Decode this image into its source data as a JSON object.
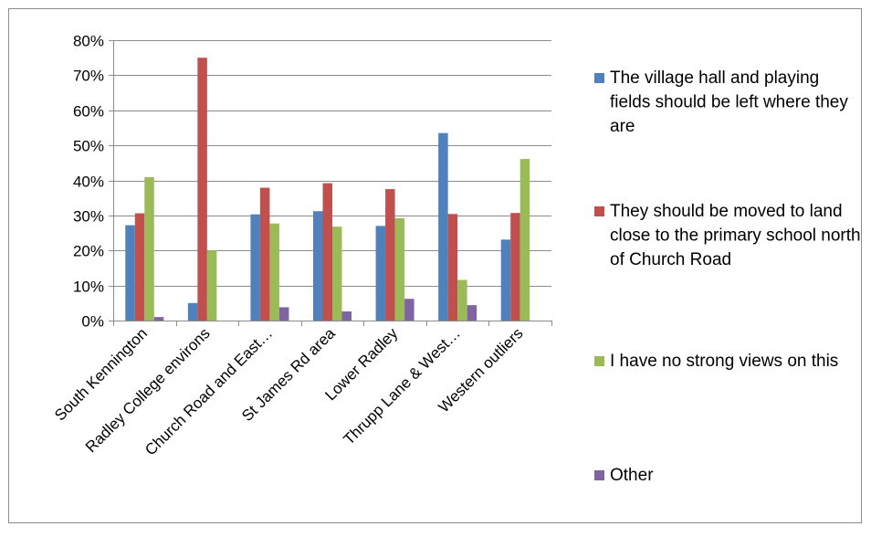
{
  "chart_data": {
    "type": "bar",
    "categories": [
      "South Kennington",
      "Radley College environs",
      "Church Road and East…",
      "St James Rd area",
      "Lower Radley",
      "Thrupp Lane & West…",
      "Western outliers"
    ],
    "series": [
      {
        "name": "The village hall and playing fields should be left where they are",
        "color": "#4F81BD",
        "values": [
          27.2,
          5.0,
          30.3,
          31.2,
          27.0,
          53.5,
          23.1
        ]
      },
      {
        "name": "They should be moved to land close to the primary school north of Church Road",
        "color": "#C0504D",
        "values": [
          30.6,
          75.0,
          37.9,
          39.2,
          37.5,
          30.4,
          30.7
        ]
      },
      {
        "name": "I have no strong views on this",
        "color": "#9BBB59",
        "values": [
          40.9,
          20.0,
          27.7,
          26.8,
          29.2,
          11.6,
          46.1
        ]
      },
      {
        "name": "Other",
        "color": "#8064A2",
        "values": [
          1.0,
          0.0,
          3.8,
          2.6,
          6.2,
          4.4,
          0.0
        ]
      }
    ],
    "yticks": [
      "0%",
      "10%",
      "20%",
      "30%",
      "40%",
      "50%",
      "60%",
      "70%",
      "80%"
    ],
    "ylim": [
      0,
      80
    ],
    "grid": true,
    "legend": "right"
  }
}
